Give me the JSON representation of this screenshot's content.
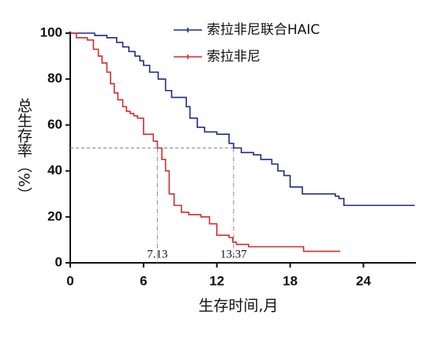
{
  "chart_data": {
    "type": "line",
    "step": true,
    "y_label": "总生存率（%）",
    "x_label": "生存时间,月",
    "xlim": [
      0,
      28.3
    ],
    "ylim": [
      0,
      100
    ],
    "xticks": [
      0,
      6,
      12,
      18,
      24
    ],
    "yticks": [
      0,
      20,
      40,
      60,
      80,
      100
    ],
    "series": [
      {
        "name": "索拉非尼联合HAIC",
        "color": "#1f2a8c",
        "x": [
          0,
          2,
          3,
          3.8,
          4.3,
          4.8,
          5.3,
          5.7,
          6,
          6.5,
          7.2,
          7.8,
          8.3,
          9.5,
          9.8,
          10.4,
          11,
          12,
          13,
          13.37,
          14,
          15,
          15.6,
          16.5,
          17,
          17.5,
          18,
          19,
          21.7,
          22,
          22.4,
          28.2
        ],
        "values": [
          100,
          99,
          98,
          96,
          94,
          92,
          90,
          88,
          86,
          83,
          80,
          75,
          72,
          68,
          63,
          59,
          57,
          56,
          52,
          50,
          48,
          47,
          45,
          43,
          40,
          38,
          33,
          30,
          29,
          28,
          25,
          25
        ]
      },
      {
        "name": "索拉非尼",
        "color": "#d42c2c",
        "x": [
          0,
          0.5,
          1.4,
          1.9,
          2.3,
          2.6,
          3,
          3.3,
          3.6,
          3.9,
          4.3,
          4.6,
          4.9,
          5.2,
          5.5,
          6,
          6.8,
          7.13,
          7.5,
          7.8,
          8.1,
          8.5,
          9.1,
          9.7,
          10.7,
          11.4,
          12,
          13,
          13.3,
          13.6,
          14.6,
          19.1,
          22.1
        ],
        "values": [
          100,
          98,
          97,
          93,
          90,
          87,
          83,
          78,
          74,
          71,
          68,
          66,
          65,
          64,
          63,
          56,
          53,
          50,
          45,
          40,
          30,
          25,
          22,
          21,
          20,
          17,
          12,
          11,
          9,
          8,
          7,
          5,
          5
        ]
      }
    ],
    "median_y": 50,
    "medians": [
      7.13,
      13.37
    ]
  }
}
